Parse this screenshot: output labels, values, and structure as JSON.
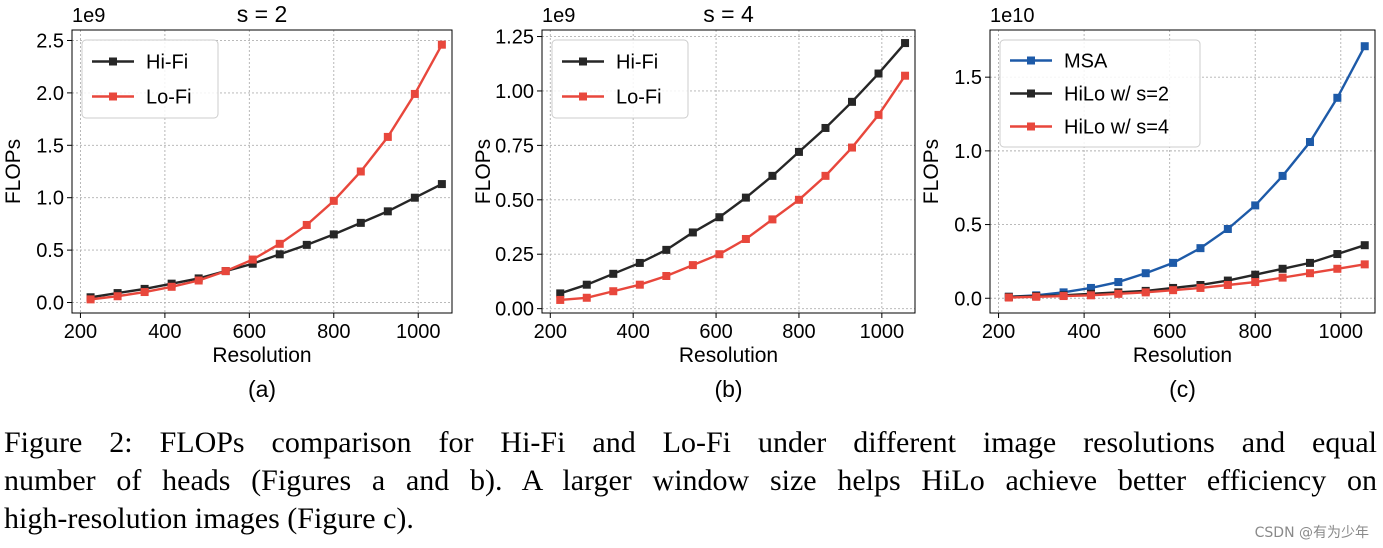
{
  "chart_data": [
    {
      "type": "line",
      "title": "s = 2",
      "exponent_label": "1e9",
      "xlabel": "Resolution",
      "ylabel": "FLOPs",
      "subplot_label": "(a)",
      "xlim": [
        180,
        1080
      ],
      "ylim": [
        -0.1,
        2.6
      ],
      "xticks": [
        200,
        400,
        600,
        800,
        1000
      ],
      "xtick_labels": [
        "200",
        "400",
        "600",
        "800",
        "1000"
      ],
      "yticks": [
        0,
        0.5,
        1.0,
        1.5,
        2.0,
        2.5
      ],
      "ytick_labels": [
        "0.0",
        "0.5",
        "1.0",
        "1.5",
        "2.0",
        "2.5"
      ],
      "legend_position": "upper-left",
      "x": [
        224,
        288,
        352,
        416,
        480,
        544,
        608,
        672,
        736,
        800,
        864,
        928,
        992,
        1056
      ],
      "series": [
        {
          "name": "Hi-Fi",
          "color": "#262626",
          "values": [
            0.05,
            0.09,
            0.13,
            0.18,
            0.23,
            0.3,
            0.37,
            0.46,
            0.55,
            0.65,
            0.76,
            0.87,
            1.0,
            1.13
          ]
        },
        {
          "name": "Lo-Fi",
          "color": "#e8473c",
          "values": [
            0.03,
            0.06,
            0.1,
            0.15,
            0.21,
            0.3,
            0.41,
            0.56,
            0.74,
            0.97,
            1.25,
            1.58,
            1.99,
            2.46
          ]
        }
      ]
    },
    {
      "type": "line",
      "title": "s = 4",
      "exponent_label": "1e9",
      "xlabel": "Resolution",
      "ylabel": "FLOPs",
      "subplot_label": "(b)",
      "xlim": [
        180,
        1080
      ],
      "ylim": [
        -0.02,
        1.28
      ],
      "xticks": [
        200,
        400,
        600,
        800,
        1000
      ],
      "xtick_labels": [
        "200",
        "400",
        "600",
        "800",
        "1000"
      ],
      "yticks": [
        0,
        0.25,
        0.5,
        0.75,
        1.0,
        1.25
      ],
      "ytick_labels": [
        "0.00",
        "0.25",
        "0.50",
        "0.75",
        "1.00",
        "1.25"
      ],
      "legend_position": "upper-left",
      "x": [
        224,
        288,
        352,
        416,
        480,
        544,
        608,
        672,
        736,
        800,
        864,
        928,
        992,
        1056
      ],
      "series": [
        {
          "name": "Hi-Fi",
          "color": "#262626",
          "values": [
            0.07,
            0.11,
            0.16,
            0.21,
            0.27,
            0.35,
            0.42,
            0.51,
            0.61,
            0.72,
            0.83,
            0.95,
            1.08,
            1.22
          ]
        },
        {
          "name": "Lo-Fi",
          "color": "#e8473c",
          "values": [
            0.04,
            0.05,
            0.08,
            0.11,
            0.15,
            0.2,
            0.25,
            0.32,
            0.41,
            0.5,
            0.61,
            0.74,
            0.89,
            1.07
          ]
        }
      ]
    },
    {
      "type": "line",
      "title": "",
      "exponent_label": "1e10",
      "xlabel": "Resolution",
      "ylabel": "FLOPs",
      "subplot_label": "(c)",
      "xlim": [
        180,
        1080
      ],
      "ylim": [
        -0.1,
        1.82
      ],
      "xticks": [
        200,
        400,
        600,
        800,
        1000
      ],
      "xtick_labels": [
        "200",
        "400",
        "600",
        "800",
        "1000"
      ],
      "yticks": [
        0,
        0.5,
        1.0,
        1.5
      ],
      "ytick_labels": [
        "0.0",
        "0.5",
        "1.0",
        "1.5"
      ],
      "legend_position": "upper-left",
      "x": [
        224,
        288,
        352,
        416,
        480,
        544,
        608,
        672,
        736,
        800,
        864,
        928,
        992,
        1056
      ],
      "series": [
        {
          "name": "MSA",
          "color": "#1d5aa8",
          "values": [
            0.01,
            0.02,
            0.04,
            0.07,
            0.11,
            0.17,
            0.24,
            0.34,
            0.47,
            0.63,
            0.83,
            1.06,
            1.36,
            1.71
          ]
        },
        {
          "name": "HiLo w/ s=2",
          "color": "#262626",
          "values": [
            0.01,
            0.015,
            0.02,
            0.03,
            0.04,
            0.05,
            0.07,
            0.09,
            0.12,
            0.16,
            0.2,
            0.24,
            0.3,
            0.36
          ]
        },
        {
          "name": "HiLo w/ s=4",
          "color": "#e8473c",
          "values": [
            0.005,
            0.01,
            0.015,
            0.02,
            0.03,
            0.04,
            0.055,
            0.07,
            0.09,
            0.11,
            0.14,
            0.17,
            0.2,
            0.23
          ]
        }
      ]
    }
  ],
  "caption": {
    "line1": "Figure 2:  FLOPs comparison for Hi-Fi and Lo-Fi under different image resolutions and equal",
    "line2": "number of heads (Figures a and b).  A larger window size helps HiLo achieve better efficiency on",
    "line3": "high-resolution images (Figure c)."
  },
  "watermark": "CSDN @有为少年"
}
